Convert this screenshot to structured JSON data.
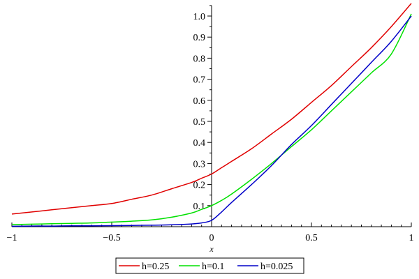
{
  "chart_data": {
    "type": "line",
    "title": "",
    "xlabel": "x",
    "ylabel": "",
    "xlim": [
      -1,
      1
    ],
    "ylim": [
      0,
      1.05
    ],
    "grid": false,
    "legend_position": "bottom",
    "x_ticks": [
      -1,
      -0.5,
      0,
      0.5,
      1
    ],
    "x_tick_labels": [
      "−1",
      "−0.5",
      "0",
      "0.5",
      "1"
    ],
    "y_ticks": [
      0.1,
      0.2,
      0.3,
      0.4,
      0.5,
      0.6,
      0.7,
      0.8,
      0.9,
      1.0
    ],
    "y_tick_labels": [
      "0.1",
      "0.2",
      "0.3",
      "0.4",
      "0.5",
      "0.6",
      "0.7",
      "0.8",
      "0.9",
      "1.0"
    ],
    "x": [
      -1,
      -0.9,
      -0.8,
      -0.7,
      -0.6,
      -0.5,
      -0.4,
      -0.3,
      -0.2,
      -0.1,
      -0.05,
      0,
      0.05,
      0.1,
      0.2,
      0.3,
      0.4,
      0.5,
      0.6,
      0.7,
      0.8,
      0.9,
      1
    ],
    "series": [
      {
        "name": "h=0.25",
        "color": "#e00000",
        "values": [
          0.06,
          0.07,
          0.08,
          0.09,
          0.1,
          0.11,
          0.13,
          0.15,
          0.18,
          0.21,
          0.23,
          0.25,
          0.28,
          0.31,
          0.37,
          0.44,
          0.51,
          0.59,
          0.67,
          0.76,
          0.85,
          0.95,
          1.06
        ]
      },
      {
        "name": "h=0.1",
        "color": "#00e000",
        "values": [
          0.01,
          0.012,
          0.014,
          0.016,
          0.018,
          0.022,
          0.026,
          0.032,
          0.045,
          0.065,
          0.082,
          0.1,
          0.125,
          0.155,
          0.225,
          0.3,
          0.38,
          0.46,
          0.55,
          0.64,
          0.73,
          0.82,
          1.01
        ]
      },
      {
        "name": "h=0.025",
        "color": "#0000c8",
        "values": [
          0.002,
          0.003,
          0.003,
          0.004,
          0.004,
          0.005,
          0.006,
          0.007,
          0.009,
          0.013,
          0.018,
          0.03,
          0.07,
          0.115,
          0.2,
          0.29,
          0.39,
          0.48,
          0.58,
          0.68,
          0.78,
          0.88,
          1.0
        ]
      }
    ]
  }
}
